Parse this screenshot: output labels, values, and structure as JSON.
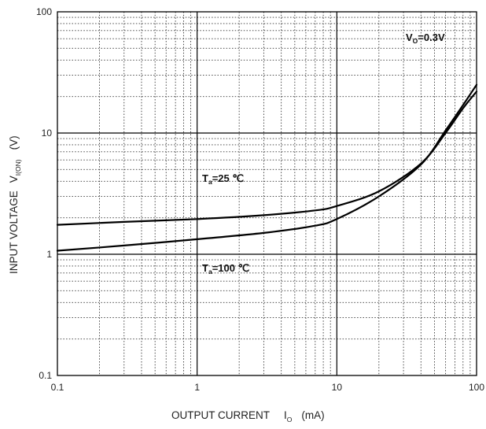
{
  "chart_data": {
    "type": "line",
    "xscale": "log",
    "yscale": "log",
    "xlim": [
      0.1,
      100
    ],
    "ylim": [
      0.1,
      100
    ],
    "grid": true,
    "xticks": [
      "0.1",
      "1",
      "10",
      "100"
    ],
    "yticks": [
      "0.1",
      "1",
      "10",
      "100"
    ],
    "xlabel": {
      "main": "OUTPUT CURRENT",
      "symbol": "I",
      "sub": "O",
      "unit": "(mA)"
    },
    "ylabel": {
      "main": "INPUT VOLTAGE",
      "symbol": "V",
      "sub": "I(ON)",
      "unit": "(V)"
    },
    "condition": {
      "symbol": "V",
      "sub": "O",
      "value": "=0.3V"
    },
    "series": [
      {
        "label": {
          "symbol": "T",
          "sub": "a",
          "value": "=25 ℃"
        },
        "points": [
          [
            0.1,
            1.75
          ],
          [
            0.3,
            1.85
          ],
          [
            1,
            1.95
          ],
          [
            3,
            2.1
          ],
          [
            7,
            2.3
          ],
          [
            10,
            2.5
          ],
          [
            20,
            3.3
          ],
          [
            40,
            5.6
          ],
          [
            60,
            10
          ],
          [
            80,
            16
          ],
          [
            100,
            22
          ]
        ]
      },
      {
        "label": {
          "symbol": "T",
          "sub": "a",
          "value": "=100 ℃"
        },
        "points": [
          [
            0.1,
            1.07
          ],
          [
            0.3,
            1.18
          ],
          [
            1,
            1.33
          ],
          [
            3,
            1.5
          ],
          [
            7,
            1.72
          ],
          [
            10,
            1.95
          ],
          [
            20,
            3.0
          ],
          [
            40,
            5.5
          ],
          [
            60,
            10.5
          ],
          [
            80,
            17
          ],
          [
            100,
            25
          ]
        ]
      }
    ]
  }
}
